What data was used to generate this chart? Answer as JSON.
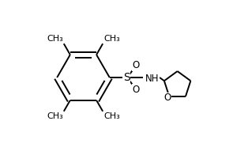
{
  "background_color": "#ffffff",
  "line_color": "#000000",
  "line_width": 1.4,
  "font_size": 8.5,
  "figsize": [
    3.14,
    1.96
  ],
  "dpi": 100,
  "xlim": [
    0.0,
    1.0
  ],
  "ylim": [
    0.05,
    0.95
  ]
}
